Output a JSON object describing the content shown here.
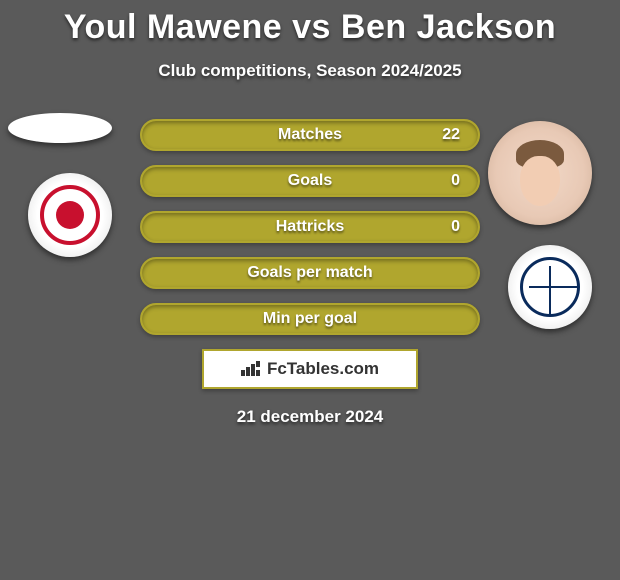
{
  "colors": {
    "background": "#5a5a5a",
    "text": "#ffffff",
    "bar_fill": "#b0a62e",
    "bar_border": "#b0a62e",
    "logo_border": "#b0a62e",
    "logo_text": "#333333"
  },
  "title": {
    "player1": "Youl Mawene",
    "vs": "vs",
    "player2": "Ben Jackson"
  },
  "subtitle": "Club competitions, Season 2024/2025",
  "stats": [
    {
      "label": "Matches",
      "value": "22",
      "show_value": true
    },
    {
      "label": "Goals",
      "value": "0",
      "show_value": true
    },
    {
      "label": "Hattricks",
      "value": "0",
      "show_value": true
    },
    {
      "label": "Goals per match",
      "value": "",
      "show_value": false
    },
    {
      "label": "Min per goal",
      "value": "",
      "show_value": false
    }
  ],
  "logo": "FcTables.com",
  "date": "21 december 2024",
  "badges": {
    "player_left": "youl-mawene-photo",
    "club_left": "fleetwood-crest",
    "player_right": "ben-jackson-photo",
    "club_right": "barrow-crest"
  }
}
